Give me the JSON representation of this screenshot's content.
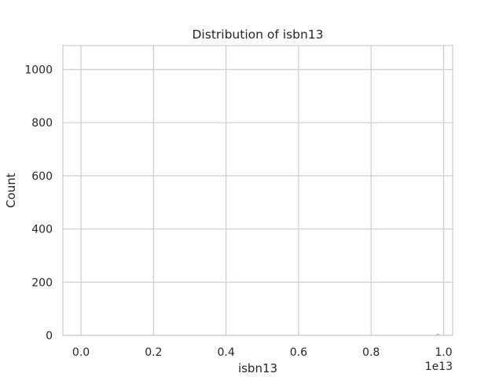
{
  "chart_data": {
    "type": "bar",
    "title": "Distribution of isbn13",
    "xlabel": "isbn13",
    "ylabel": "Count",
    "x_offset_label": "1e13",
    "xlim": [
      -0.05,
      1.025
    ],
    "ylim": [
      0,
      1090
    ],
    "xticks": [
      0.0,
      0.2,
      0.4,
      0.6,
      0.8,
      1.0
    ],
    "xtick_labels": [
      "0.0",
      "0.2",
      "0.4",
      "0.6",
      "0.8",
      "1.0"
    ],
    "yticks": [
      0,
      200,
      400,
      600,
      800,
      1000
    ],
    "ytick_labels": [
      "0",
      "200",
      "400",
      "600",
      "800",
      "1000"
    ],
    "grid": true,
    "legend": "none",
    "bins": [
      {
        "x0": 0.0,
        "x1": 0.98,
        "count": 0
      },
      {
        "x0": 0.98,
        "x1": 0.988,
        "count": 4
      }
    ],
    "bar_color": "#a9a9a9",
    "grid_color": "#cccccc",
    "spine_color": "#cccccc"
  }
}
